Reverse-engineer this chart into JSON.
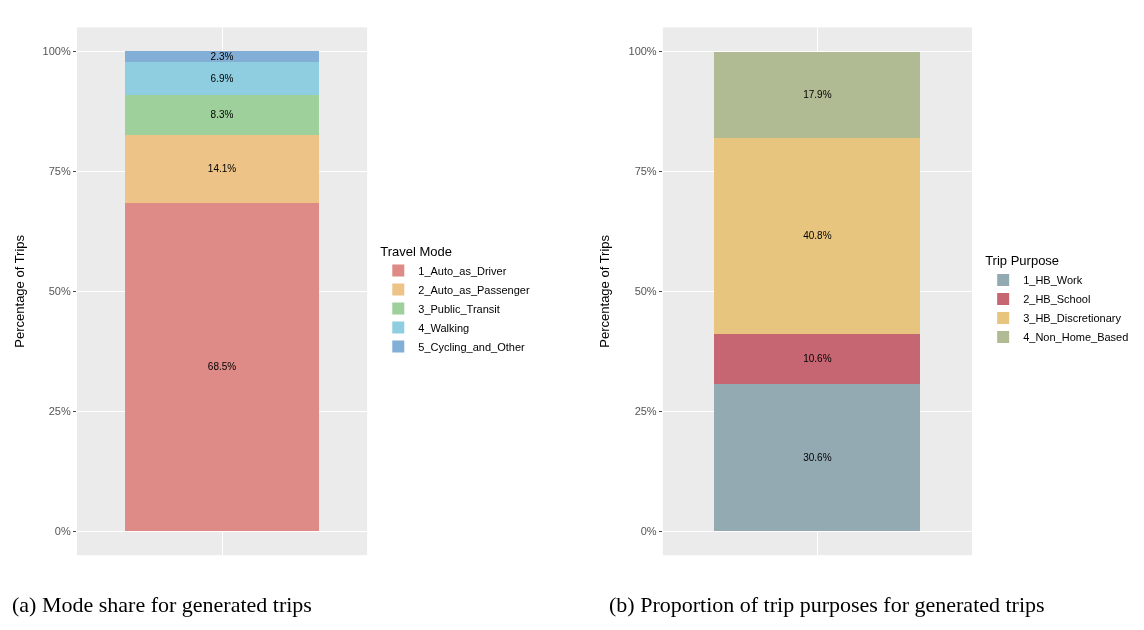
{
  "chart_data": [
    {
      "type": "bar",
      "stacked": true,
      "categories": [
        null
      ],
      "ylabel": "Percentage of Trips",
      "legend_title": "Travel Mode",
      "legend": "right",
      "grid": true,
      "tick_labels": "y",
      "ylim": [
        -5,
        105
      ],
      "yticks": [
        {
          "value": 0,
          "label": "0%"
        },
        {
          "value": 25,
          "label": "25%"
        },
        {
          "value": 50,
          "label": "50%"
        },
        {
          "value": 75,
          "label": "75%"
        },
        {
          "value": 100,
          "label": "100%"
        }
      ],
      "series": [
        {
          "name": "1_Auto_as_Driver",
          "color": "#de8a86",
          "values": [
            68.5
          ],
          "value_labels": [
            "68.5%"
          ]
        },
        {
          "name": "2_Auto_as_Passenger",
          "color": "#edc388",
          "values": [
            14.1
          ],
          "value_labels": [
            "14.1%"
          ]
        },
        {
          "name": "3_Public_Transit",
          "color": "#9dd09a",
          "values": [
            8.3
          ],
          "value_labels": [
            "8.3%"
          ]
        },
        {
          "name": "4_Walking",
          "color": "#8fcde0",
          "values": [
            6.9
          ],
          "value_labels": [
            "6.9%"
          ]
        },
        {
          "name": "5_Cycling_and_Other",
          "color": "#83aed6",
          "values": [
            2.3
          ],
          "value_labels": [
            "2.3%"
          ]
        }
      ],
      "annotations": [
        "(a) Mode share for generated trips"
      ]
    },
    {
      "type": "bar",
      "stacked": true,
      "categories": [
        null
      ],
      "ylabel": "Percentage of Trips",
      "legend_title": "Trip Purpose",
      "legend": "right",
      "grid": true,
      "tick_labels": "y",
      "ylim": [
        -5,
        105
      ],
      "yticks": [
        {
          "value": 0,
          "label": "0%"
        },
        {
          "value": 25,
          "label": "25%"
        },
        {
          "value": 50,
          "label": "50%"
        },
        {
          "value": 75,
          "label": "75%"
        },
        {
          "value": 100,
          "label": "100%"
        }
      ],
      "series": [
        {
          "name": "1_HB_Work",
          "color": "#94aab3",
          "values": [
            30.6
          ],
          "value_labels": [
            "30.6%"
          ]
        },
        {
          "name": "2_HB_School",
          "color": "#c76673",
          "values": [
            10.6
          ],
          "value_labels": [
            "10.6%"
          ]
        },
        {
          "name": "3_HB_Discretionary",
          "color": "#e8c57e",
          "values": [
            40.8
          ],
          "value_labels": [
            "40.8%"
          ]
        },
        {
          "name": "4_Non_Home_Based",
          "color": "#b0ba93",
          "values": [
            17.9
          ],
          "value_labels": [
            "17.9%"
          ]
        }
      ],
      "annotations": [
        "(b) Proportion of trip purposes for generated trips"
      ]
    }
  ]
}
